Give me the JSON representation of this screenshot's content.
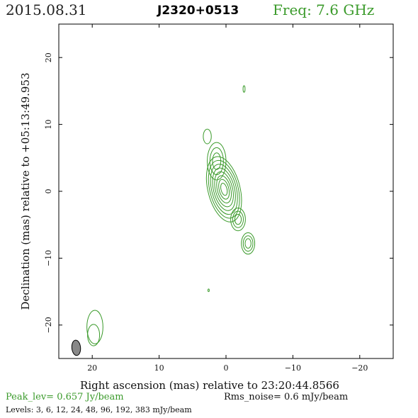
{
  "header": {
    "date": "2015.08.31",
    "source": "J2320+0513",
    "freq": "Freq: 7.6 GHz",
    "freq_color": "#3a9a2a"
  },
  "footer": {
    "peak": "Peak_lev=  0.657 Jy/beam",
    "rms": "Rms_noise=  0.6 mJy/beam",
    "levels": "Levels:   3,   6,  12,  24,  48,  96, 192, 383 mJy/beam"
  },
  "chart_data": {
    "type": "contour",
    "xlabel": "Right ascension (mas) relative to 23:20:44.8566",
    "ylabel": "Declination (mas) relative to +05:13:49.953",
    "xlim": [
      25,
      -25
    ],
    "ylim": [
      -25,
      25
    ],
    "x_ticks": [
      20,
      10,
      0,
      -10,
      -20
    ],
    "x_tick_labels": [
      "20",
      "10",
      "0",
      "−10",
      "−20"
    ],
    "y_ticks": [
      20,
      10,
      0,
      -10,
      -20
    ],
    "y_tick_labels": [
      "20",
      "10",
      "0",
      "−10",
      "−20"
    ],
    "contour_color": "#3a9a2a",
    "contour_levels_mJy": [
      3,
      6,
      12,
      24,
      48,
      96,
      192,
      383
    ],
    "components": [
      {
        "x": 0.3,
        "y": 0.3,
        "levels": 8,
        "rx": 2.4,
        "ry": 5.0,
        "angle": -14
      },
      {
        "x": 1.4,
        "y": 4.5,
        "levels": 3,
        "rx": 1.4,
        "ry": 2.8,
        "angle": 0
      },
      {
        "x": 2.8,
        "y": 8.2,
        "levels": 1,
        "rx": 0.6,
        "ry": 1.1,
        "angle": 0
      },
      {
        "x": -1.8,
        "y": -4.2,
        "levels": 3,
        "rx": 1.1,
        "ry": 1.7,
        "angle": 0
      },
      {
        "x": -3.3,
        "y": -7.8,
        "levels": 3,
        "rx": 1.0,
        "ry": 1.6,
        "angle": 0
      },
      {
        "x": -2.7,
        "y": 15.3,
        "levels": 1,
        "rx": 0.15,
        "ry": 0.5,
        "angle": 0
      },
      {
        "x": 2.6,
        "y": -14.8,
        "levels": 1,
        "rx": 0.1,
        "ry": 0.2,
        "angle": 0
      },
      {
        "x": 19.6,
        "y": -20.3,
        "levels": 1,
        "rx": 1.2,
        "ry": 2.5,
        "angle": 0
      },
      {
        "x": 19.8,
        "y": -21.5,
        "levels": 1,
        "rx": 0.9,
        "ry": 1.6,
        "angle": 0
      }
    ],
    "beam": {
      "x": 22.4,
      "y": -23.4,
      "major": 2.3,
      "minor": 1.3,
      "angle": -5,
      "fill": "#888888"
    }
  }
}
